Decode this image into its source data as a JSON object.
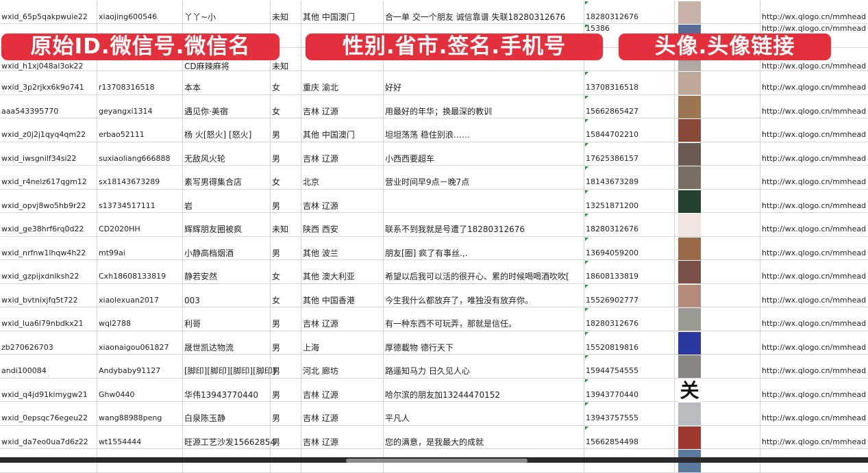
{
  "overlay_labels": [
    "原始ID.微信号.微信名",
    "性别.省市.签名.手机号",
    "头像.头像链接"
  ],
  "rows": [
    {
      "id": "wxid_65p5qakpwuie22",
      "wechat_no": "xiaojing600546",
      "name": "丫丫~小",
      "gender": "未知",
      "region": "其他 中国澳门",
      "signature": "合一单 交一个朋友 诚信靠谱 失联18280312676",
      "phone": "18280312676",
      "avatar_color": "#c9b3a8",
      "link": "http://wx.qlogo.cn/mmhead"
    },
    {
      "id": "",
      "wechat_no": "",
      "name": "",
      "gender": "",
      "region": "",
      "signature": "",
      "phone": "15386",
      "avatar_color": "#5a6c9a",
      "link": "http://wx.qlogo.cn/mmhead"
    },
    {
      "id": "wxid_h1xj048al3ok22",
      "wechat_no": "",
      "name": "CD麻辣麻将",
      "gender": "未知",
      "region": "",
      "signature": "",
      "phone": "",
      "avatar_color": "#b0a7a0",
      "link": "http://wx.qlogo.cn/mmhead"
    },
    {
      "id": "wxid_3p2rjkx6k9o741",
      "wechat_no": "r13708316518",
      "name": "本本",
      "gender": "女",
      "region": "重庆 渝北",
      "signature": "好好",
      "phone": "13708316518",
      "avatar_color": "#bfa899",
      "link": "http://wx.qlogo.cn/mmhead"
    },
    {
      "id": "aaa543395770",
      "wechat_no": "geyangxi1314",
      "name": "遇见你·美宿",
      "gender": "女",
      "region": "吉林 辽源",
      "signature": "用最好的年华；换最深的教训",
      "phone": "15662865427",
      "avatar_color": "#9c7552",
      "link": "http://wx.qlogo.cn/mmhead"
    },
    {
      "id": "wxid_z0j2j1qyq4qm22",
      "wechat_no": "erbao52111",
      "name": "杨 火[怒火] [怒火]",
      "gender": "男",
      "region": "其他 中国澳门",
      "signature": "坦坦荡荡 稳住别浪……",
      "phone": "15844702210",
      "avatar_color": "#8a4a38",
      "link": "http://wx.qlogo.cn/mmhead"
    },
    {
      "id": "wxid_iwsgnilf34si22",
      "wechat_no": "suxiaoliang666888",
      "name": "无敌风火轮",
      "gender": "男",
      "region": "吉林 辽源",
      "signature": "小西西要超车",
      "phone": "17625386157",
      "avatar_color": "#6a5a52",
      "link": "http://wx.qlogo.cn/mmhead"
    },
    {
      "id": "wxid_r4nelz617qgm12",
      "wechat_no": "sx18143673289",
      "name": "素写男得集合店",
      "gender": "女",
      "region": "北京",
      "signature": "营业时间早9点－晚7点",
      "phone": "18143673289",
      "avatar_color": "#7a6e64",
      "link": "http://wx.qlogo.cn/mmhead"
    },
    {
      "id": "wxid_opvj8wo5hb9r22",
      "wechat_no": "s13734517111",
      "name": "岩",
      "gender": "男",
      "region": "吉林 辽源",
      "signature": "",
      "phone": "13251871200",
      "avatar_color": "#24402e",
      "link": "http://wx.qlogo.cn/mmhead"
    },
    {
      "id": "wxid_ge38hrf6rq0d22",
      "wechat_no": "CD2020HH",
      "name": "辉辉朋友圈被疯",
      "gender": "未知",
      "region": "陕西 西安",
      "signature": "联系不到我就是号遭了18280312676",
      "phone": "18280312676",
      "avatar_color": "#f1e4df",
      "link": "http://wx.qlogo.cn/mmhead"
    },
    {
      "id": "wxid_nrfnw1lhqw4h22",
      "wechat_no": "mt99ai",
      "name": "小静高档烟酒",
      "gender": "男",
      "region": "其他 波兰",
      "signature": "朋友[圈] 疯了有事丝.,.",
      "phone": "13694059200",
      "avatar_color": "#9a6a48",
      "link": "http://wx.qlogo.cn/mmhead"
    },
    {
      "id": "wxid_gzpijxdnlksh22",
      "wechat_no": "Cxh18608133819",
      "name": "静若安然",
      "gender": "女",
      "region": "其他 澳大利亚",
      "signature": "希望以后我可以活的很开心、累的时候喝喝酒吹吹[",
      "phone": "18608133819",
      "avatar_color": "#7a5048",
      "link": "http://wx.qlogo.cn/mmhead"
    },
    {
      "id": "wxid_bvtnixjfq5t722",
      "wechat_no": "xiaolexuan2017",
      "name": "003",
      "gender": "女",
      "region": "其他 中国香港",
      "signature": "今生我什么都放弃了，唯独没有放弃你。",
      "phone": "15526902777",
      "avatar_color": "#b58a7a",
      "link": "http://wx.qlogo.cn/mmhead"
    },
    {
      "id": "wxid_lua6l79nbdkx21",
      "wechat_no": "wql2788",
      "name": "利哥",
      "gender": "男",
      "region": "吉林 辽源",
      "signature": "有一种东西不可玩弄，那就是信任。",
      "phone": "18280312676",
      "avatar_color": "#9a9a92",
      "link": "http://wx.qlogo.cn/mmhead"
    },
    {
      "id": "zb270626703",
      "wechat_no": "xiaonaigou061827",
      "name": "晟世凯达物流",
      "gender": "男",
      "region": "上海",
      "signature": "厚德載物 德行天下",
      "phone": "15520819816",
      "avatar_color": "#2a3aa0",
      "link": "http://wx.qlogo.cn/mmhead"
    },
    {
      "id": "andi100084",
      "wechat_no": "Andybaby91127",
      "name": "[脚印][脚印][脚印][脚印]",
      "gender": "男",
      "region": "河北 廊坊",
      "signature": "路遥知马力 日久见人心",
      "phone": "15944754555",
      "avatar_color": "#8a8480",
      "link": "http://wx.qlogo.cn/mmhead"
    },
    {
      "id": "wxid_q4jd91kimygw21",
      "wechat_no": "Ghw0440",
      "name": "华伟13943770440",
      "gender": "男",
      "region": "吉林 辽源",
      "signature": "哈尔滨的朋友加13244470152",
      "phone": "13943770440",
      "avatar_color": "#ffffff",
      "link": "http://wx.qlogo.cn/mmhead"
    },
    {
      "id": "wxid_0epsqc76egeu22",
      "wechat_no": "wang88988peng",
      "name": "白泉陈玉静",
      "gender": "男",
      "region": "吉林 辽源",
      "signature": "平凡人",
      "phone": "13943757555",
      "avatar_color": "#b8bcc0",
      "link": "http://wx.qlogo.cn/mmhead"
    },
    {
      "id": "wxid_da7eo0ua7d6z22",
      "wechat_no": "wt1554444",
      "name": "旺源工艺沙发15662854",
      "gender": "男",
      "region": "吉林 辽源",
      "signature": "您的满意，是我最大的成就",
      "phone": "15662854498",
      "avatar_color": "#a03a30",
      "link": "http://wx.qlogo.cn/mmhead"
    },
    {
      "id": "",
      "wechat_no": "",
      "name": "",
      "gender": "",
      "region": "",
      "signature": "",
      "phone": "",
      "avatar_color": "#5a7aa0",
      "link": ""
    }
  ],
  "avatar_glyph_row16": "关",
  "colors": {
    "banner": "#e3303c",
    "grid": "#d4d4d4",
    "text_flag": "#2e8b3a"
  }
}
